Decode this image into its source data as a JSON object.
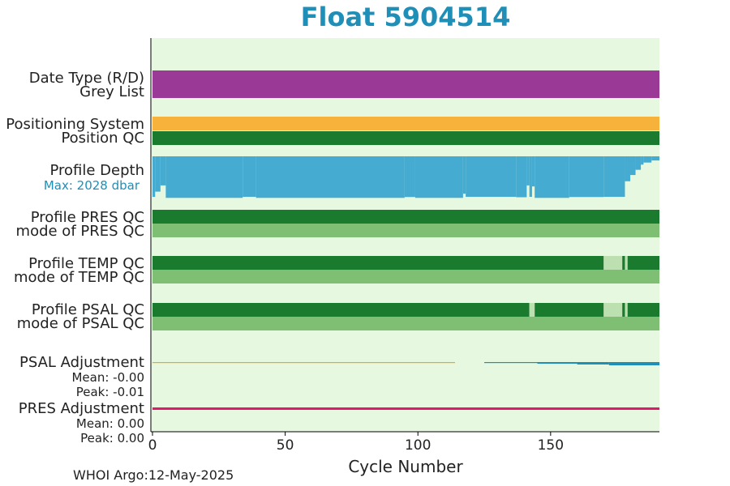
{
  "title": "Float 5904514",
  "footer": "WHOI Argo:12-May-2025",
  "labels": {
    "date_type": "Date Type (R/D)",
    "grey_list": "Grey List",
    "positioning_system": "Positioning System",
    "position_qc": "Position QC",
    "profile_depth": "Profile Depth",
    "max_depth": "Max: 2028 dbar",
    "profile_pres_qc": "Profile PRES QC",
    "mode_pres_qc": "mode of PRES QC",
    "profile_temp_qc": "Profile TEMP QC",
    "mode_temp_qc": "mode of TEMP QC",
    "profile_psal_qc": "Profile PSAL QC",
    "mode_psal_qc": "mode of PSAL QC",
    "psal_adjustment": "PSAL Adjustment",
    "psal_mean": "Mean: -0.00",
    "psal_peak": "Peak: -0.01",
    "pres_adjustment": "PRES Adjustment",
    "pres_mean": "Mean: 0.00",
    "pres_peak": "Peak: 0.00"
  },
  "colors": {
    "title": "#1f8fb8",
    "background": "#e6f9e0",
    "date_type": "#9a3a96",
    "positioning": "#f7b23b",
    "qc_good": "#1a7a2e",
    "qc_mode": "#7fbf74",
    "qc_light": "#bde0b0",
    "depth": "#45abd1",
    "psal_adj_early": "#f7a21b",
    "psal_adj_late": "#1f8fb8",
    "pres_adj": "#e0196e"
  },
  "chart_data": {
    "type": "bar",
    "xlabel": "Cycle Number",
    "xlim": [
      -1,
      192
    ],
    "x_ticks": [
      0,
      50,
      100,
      150
    ],
    "max_depth_dbar": 2028,
    "rows": [
      {
        "name": "Date Type (R/D)",
        "segments": [
          {
            "from": 0,
            "to": 191,
            "value": "D"
          }
        ]
      },
      {
        "name": "Positioning System",
        "segments": [
          {
            "from": 0,
            "to": 191,
            "value": "GPS"
          }
        ]
      },
      {
        "name": "Position QC",
        "segments": [
          {
            "from": 0,
            "to": 191,
            "value": 1
          }
        ]
      },
      {
        "name": "Profile PRES QC",
        "segments": [
          {
            "from": 0,
            "to": 191,
            "value": "A"
          }
        ]
      },
      {
        "name": "mode of PRES QC",
        "segments": [
          {
            "from": 0,
            "to": 191,
            "value": 1
          }
        ]
      },
      {
        "name": "Profile TEMP QC",
        "segments": [
          {
            "from": 0,
            "to": 170,
            "value": "A"
          },
          {
            "from": 170,
            "to": 177,
            "value": "B"
          },
          {
            "from": 177,
            "to": 178,
            "value": "A"
          },
          {
            "from": 178,
            "to": 179,
            "value": "B"
          },
          {
            "from": 179,
            "to": 191,
            "value": "A"
          }
        ]
      },
      {
        "name": "mode of TEMP QC",
        "segments": [
          {
            "from": 0,
            "to": 191,
            "value": 1
          }
        ]
      },
      {
        "name": "Profile PSAL QC",
        "segments": [
          {
            "from": 0,
            "to": 142,
            "value": "A"
          },
          {
            "from": 142,
            "to": 144,
            "value": "B"
          },
          {
            "from": 144,
            "to": 170,
            "value": "A"
          },
          {
            "from": 170,
            "to": 177,
            "value": "B"
          },
          {
            "from": 177,
            "to": 178,
            "value": "A"
          },
          {
            "from": 178,
            "to": 179,
            "value": "B"
          },
          {
            "from": 179,
            "to": 191,
            "value": "A"
          }
        ]
      },
      {
        "name": "mode of PSAL QC",
        "segments": [
          {
            "from": 0,
            "to": 191,
            "value": 1
          }
        ]
      }
    ],
    "profile_depth_dbar": [
      {
        "from": 0,
        "to": 1,
        "value": 1950
      },
      {
        "from": 1,
        "to": 3,
        "value": 1700
      },
      {
        "from": 3,
        "to": 5,
        "value": 1400
      },
      {
        "from": 5,
        "to": 34,
        "value": 2000
      },
      {
        "from": 34,
        "to": 39,
        "value": 1950
      },
      {
        "from": 39,
        "to": 95,
        "value": 2000
      },
      {
        "from": 95,
        "to": 99,
        "value": 1960
      },
      {
        "from": 99,
        "to": 117,
        "value": 2000
      },
      {
        "from": 117,
        "to": 118,
        "value": 1800
      },
      {
        "from": 118,
        "to": 137,
        "value": 1950
      },
      {
        "from": 137,
        "to": 141,
        "value": 1970
      },
      {
        "from": 141,
        "to": 142,
        "value": 1400
      },
      {
        "from": 142,
        "to": 143,
        "value": 1950
      },
      {
        "from": 143,
        "to": 144,
        "value": 1450
      },
      {
        "from": 144,
        "to": 157,
        "value": 2000
      },
      {
        "from": 157,
        "to": 170,
        "value": 1960
      },
      {
        "from": 170,
        "to": 178,
        "value": 1950
      },
      {
        "from": 178,
        "to": 180,
        "value": 1200
      },
      {
        "from": 180,
        "to": 182,
        "value": 900
      },
      {
        "from": 182,
        "to": 184,
        "value": 650
      },
      {
        "from": 184,
        "to": 185,
        "value": 400
      },
      {
        "from": 185,
        "to": 188,
        "value": 300
      },
      {
        "from": 188,
        "to": 191,
        "value": 200
      }
    ],
    "psal_adjustment": [
      {
        "from": 0,
        "to": 114,
        "value": 0.0,
        "color": "early"
      },
      {
        "from": 125,
        "to": 145,
        "value": -0.002,
        "color": "late"
      },
      {
        "from": 145,
        "to": 160,
        "value": -0.004,
        "color": "late"
      },
      {
        "from": 160,
        "to": 172,
        "value": -0.006,
        "color": "late"
      },
      {
        "from": 172,
        "to": 191,
        "value": -0.008,
        "color": "late"
      }
    ],
    "pres_adjustment": [
      {
        "from": 0,
        "to": 191,
        "value": 0.0
      }
    ]
  }
}
